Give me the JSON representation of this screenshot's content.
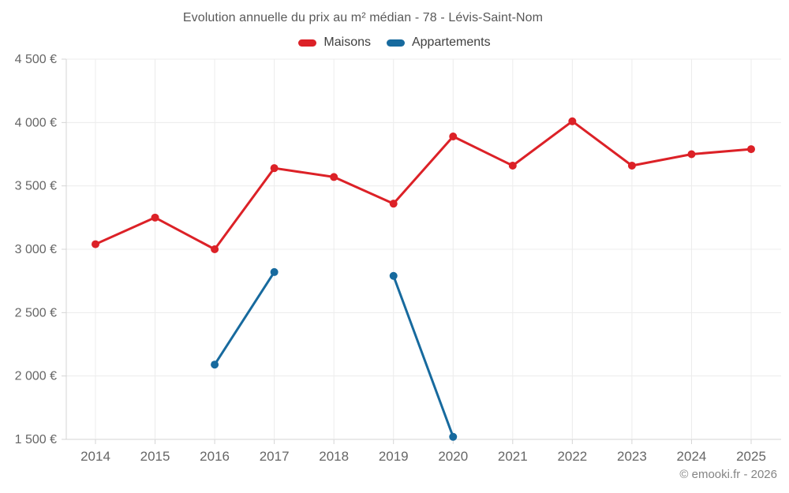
{
  "chart": {
    "title": "Evolution annuelle du prix au m² médian - 78 - Lévis-Saint-Nom",
    "footer": "© emooki.fr - 2026",
    "legend": [
      "Maisons",
      "Appartements"
    ]
  },
  "colors": {
    "maisons": "#dc2127",
    "appartements": "#176a9e",
    "grid": "#ececec",
    "axis": "#d4d4d4",
    "tick_label": "#666666"
  },
  "chart_data": {
    "type": "line",
    "title": "Evolution annuelle du prix au m² médian - 78 - Lévis-Saint-Nom",
    "categories": [
      "2014",
      "2015",
      "2016",
      "2017",
      "2018",
      "2019",
      "2020",
      "2021",
      "2022",
      "2023",
      "2024",
      "2025"
    ],
    "series": [
      {
        "name": "Maisons",
        "color": "#dc2127",
        "values": [
          3040,
          3250,
          3000,
          3640,
          3570,
          3360,
          3890,
          3660,
          4010,
          3660,
          3750,
          3790
        ]
      },
      {
        "name": "Appartements",
        "color": "#176a9e",
        "values": [
          null,
          null,
          2090,
          2820,
          null,
          2790,
          1520,
          null,
          null,
          null,
          null,
          null
        ]
      }
    ],
    "xlabel": "",
    "ylabel": "",
    "ylim": [
      1500,
      4500
    ],
    "ytick_step": 500,
    "ytick_labels": [
      "1 500 €",
      "2 000 €",
      "2 500 €",
      "3 000 €",
      "3 500 €",
      "4 000 €",
      "4 500 €"
    ],
    "grid": true,
    "legend_position": "top",
    "footer": "© emooki.fr - 2026"
  }
}
